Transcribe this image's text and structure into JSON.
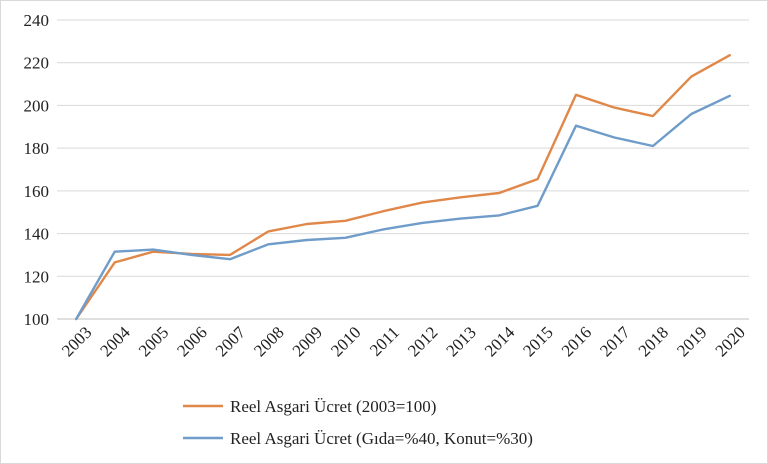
{
  "chart_data": {
    "type": "line",
    "title": "",
    "xlabel": "",
    "ylabel": "",
    "x": [
      "2003",
      "2004",
      "2005",
      "2006",
      "2007",
      "2008",
      "2009",
      "2010",
      "2011",
      "2012",
      "2013",
      "2014",
      "2015",
      "2016",
      "2017",
      "2018",
      "2019",
      "2020"
    ],
    "ylim": [
      100,
      240
    ],
    "yticks": [
      100,
      120,
      140,
      160,
      180,
      200,
      220,
      240
    ],
    "grid": true,
    "legend_position": "bottom",
    "series": [
      {
        "name": "Reel Asgari Ücret (2003=100)",
        "color": "#E0884A",
        "values": [
          100,
          126.5,
          131.5,
          130.5,
          130,
          141,
          144.5,
          146,
          150.5,
          154.5,
          157,
          159,
          165.5,
          205,
          199,
          195,
          213.5,
          223.5
        ]
      },
      {
        "name": "Reel Asgari Ücret (Gıda=%40, Konut=%30)",
        "color": "#6F9CC9",
        "values": [
          100,
          131.5,
          132.5,
          130,
          128,
          135,
          137,
          138,
          142,
          145,
          147,
          148.5,
          153,
          190.5,
          185,
          181,
          196,
          204.5
        ]
      }
    ]
  }
}
